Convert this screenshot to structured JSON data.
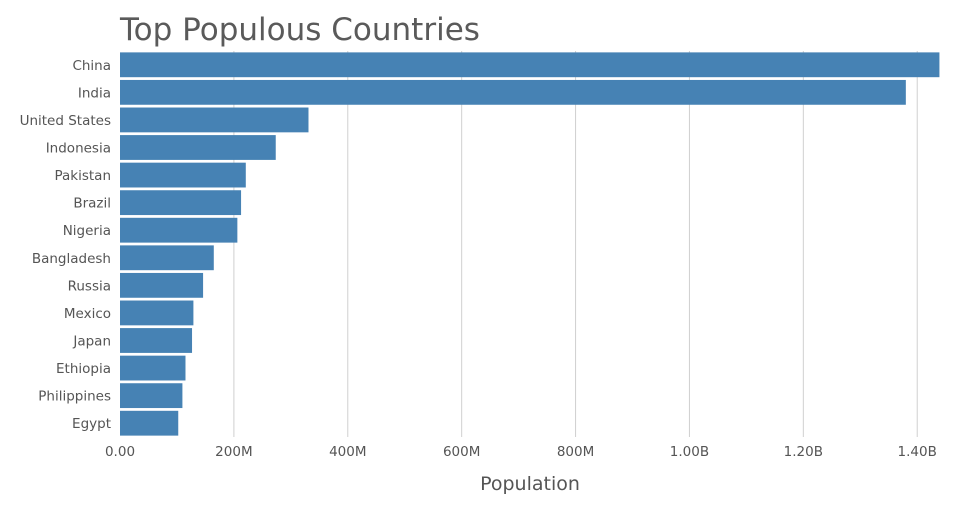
{
  "chart_data": {
    "type": "bar",
    "orientation": "horizontal",
    "title": "Top Populous Countries",
    "xlabel": "Population",
    "ylabel": "",
    "xlim": [
      0,
      1440000000
    ],
    "x_ticks": [
      0,
      200000000,
      400000000,
      600000000,
      800000000,
      1000000000,
      1200000000,
      1400000000
    ],
    "x_tick_labels": [
      "0.00",
      "200M",
      "400M",
      "600M",
      "800M",
      "1.00B",
      "1.20B",
      "1.40B"
    ],
    "categories": [
      "China",
      "India",
      "United States",
      "Indonesia",
      "Pakistan",
      "Brazil",
      "Nigeria",
      "Bangladesh",
      "Russia",
      "Mexico",
      "Japan",
      "Ethiopia",
      "Philippines",
      "Egypt"
    ],
    "values": [
      1439000000,
      1380000000,
      331000000,
      273500000,
      220900000,
      212600000,
      206100000,
      164700000,
      145900000,
      128900000,
      126500000,
      115000000,
      109600000,
      102300000
    ],
    "grid": true,
    "legend": "none",
    "bar_color": "#4682b4"
  }
}
